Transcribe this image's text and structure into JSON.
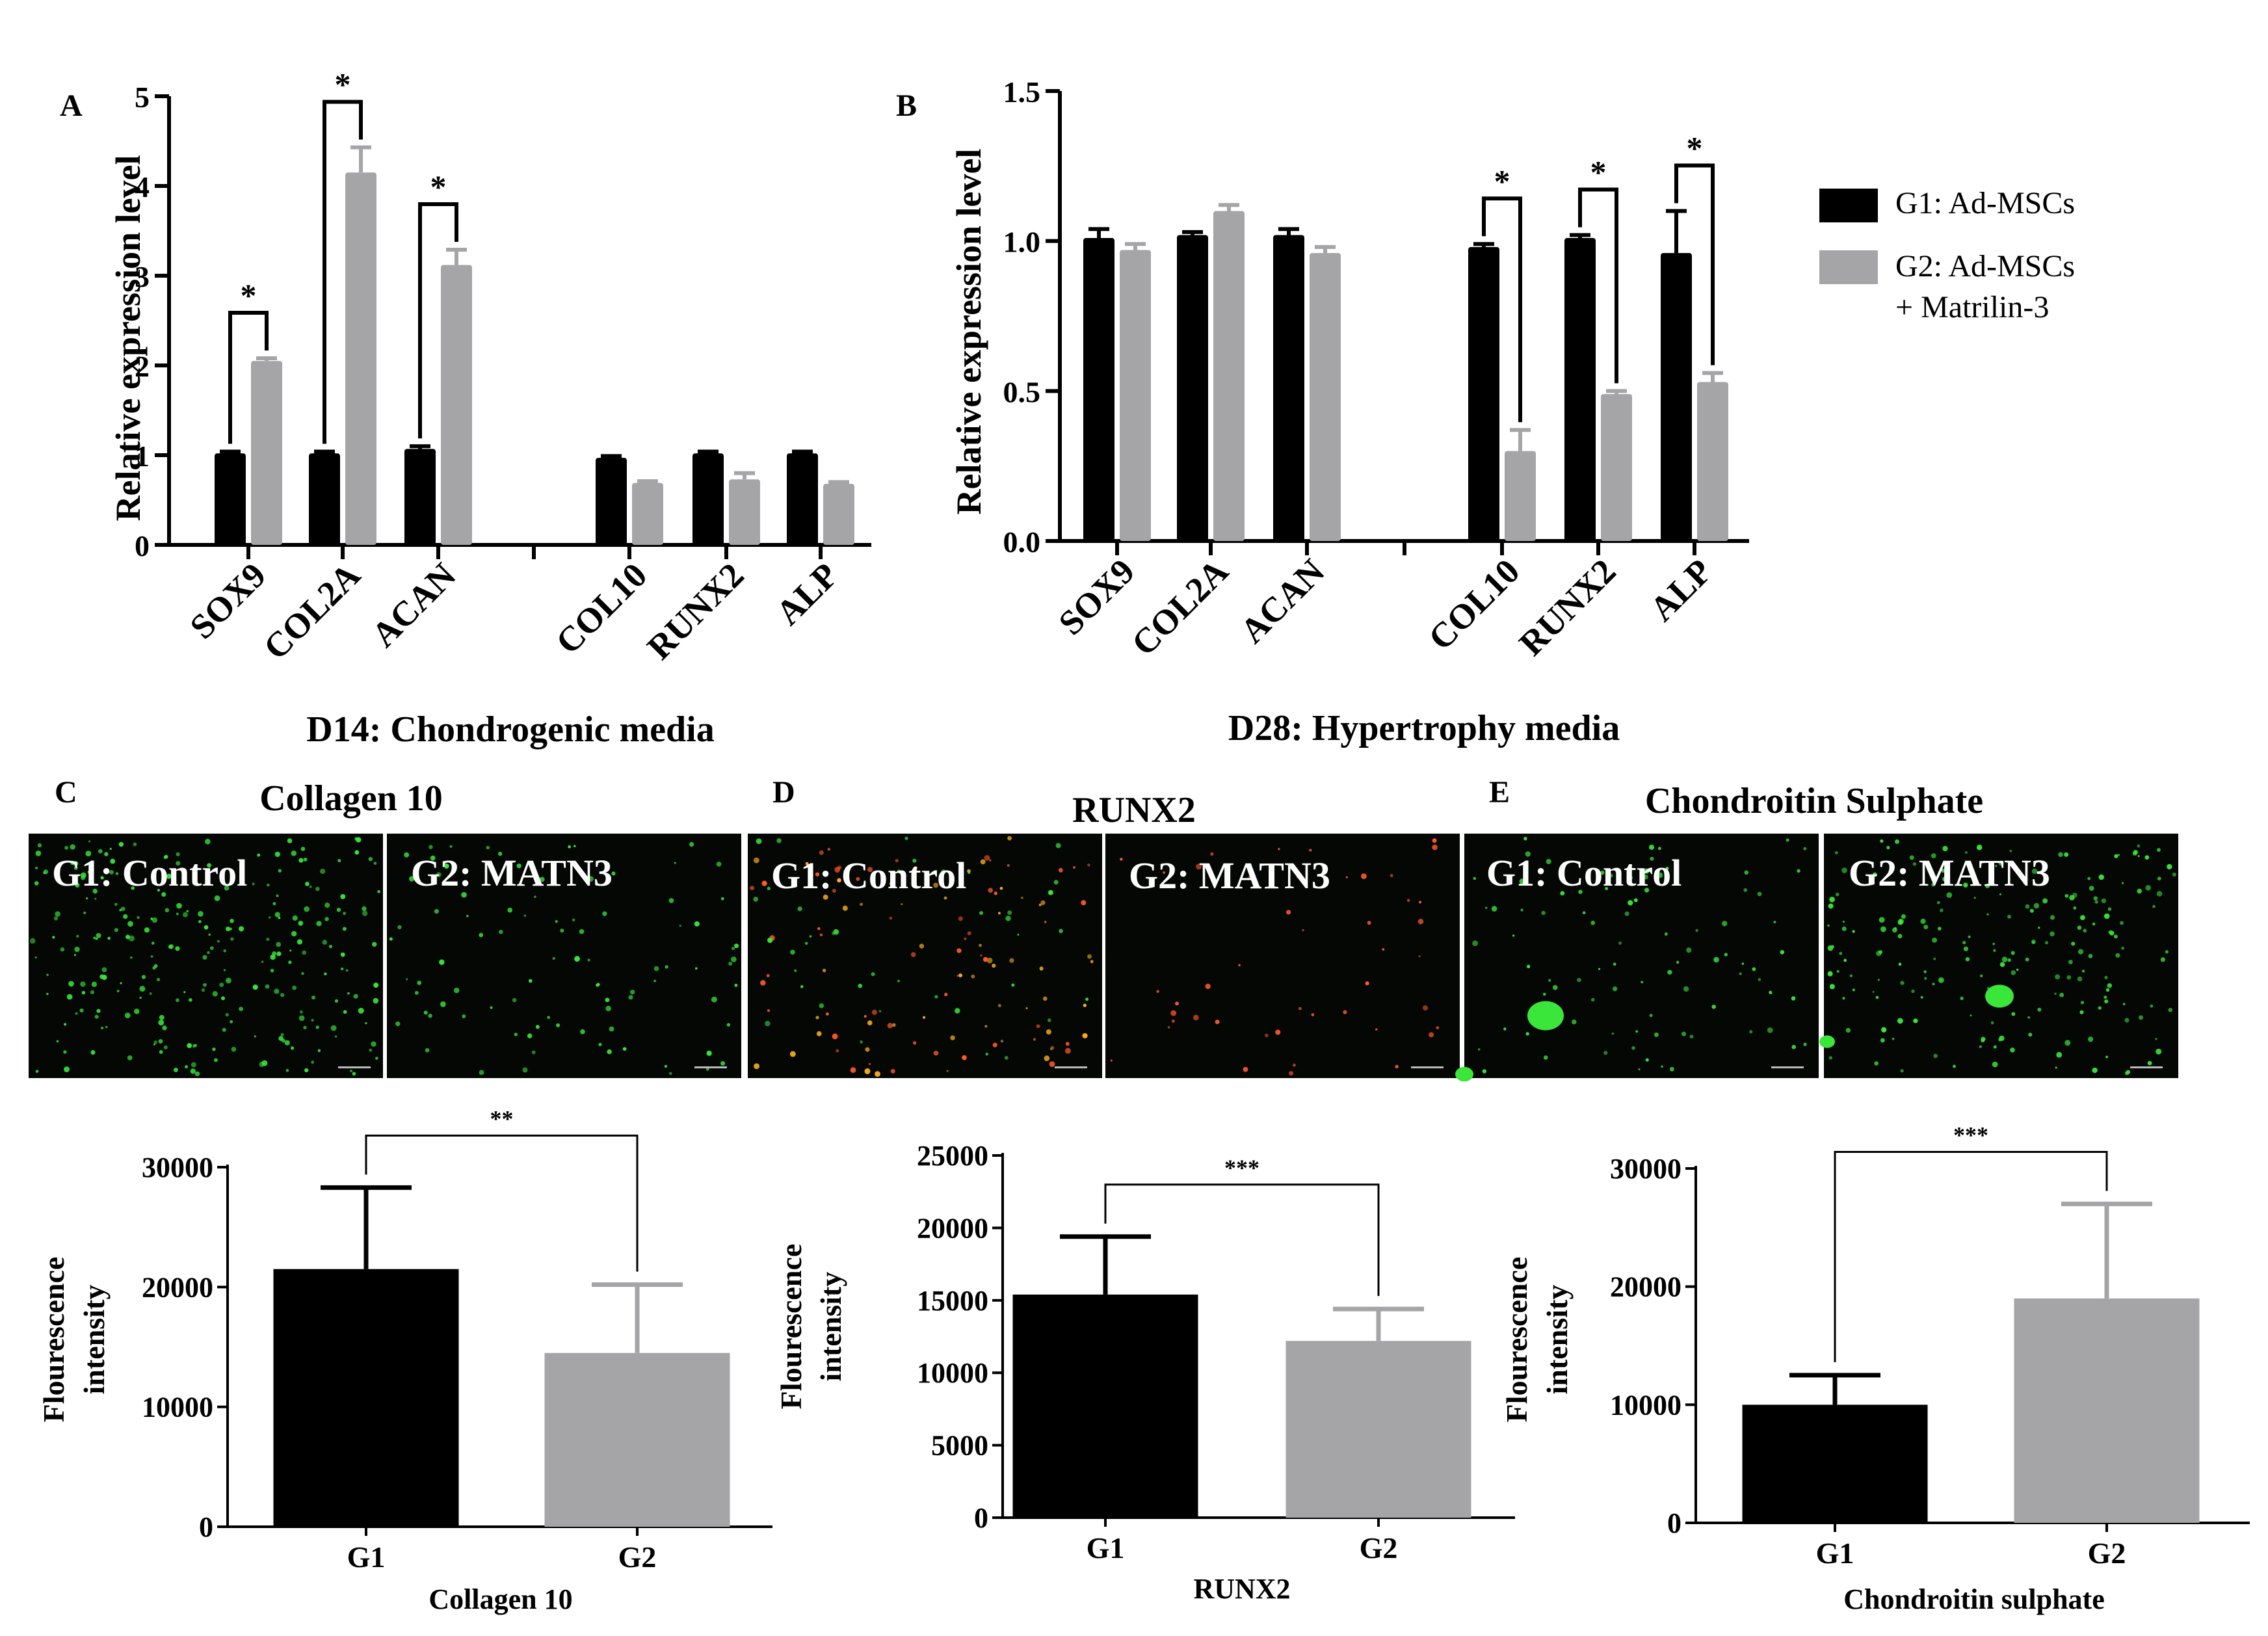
{
  "legend": {
    "placement": "right",
    "entries": [
      {
        "label": "G1: Ad-MSCs",
        "color": "#000000"
      },
      {
        "label": "G2: Ad-MSCs",
        "label2": "+ Matrilin-3",
        "color": "#a5a5a7"
      }
    ]
  },
  "colors": {
    "g1": "#000000",
    "g2": "#a5a5a7",
    "green_signal": "#39e639",
    "red_signal": "#ff5a28",
    "micrograph_bg": "#050705"
  },
  "micrographs": {
    "C": {
      "panel": "C",
      "title": "Collagen 10",
      "left_label": "G1: Control",
      "right_label": "G2: MATN3"
    },
    "D": {
      "panel": "D",
      "title": "RUNX2",
      "left_label": "G1: Control",
      "right_label": "G2: MATN3"
    },
    "E": {
      "panel": "E",
      "title": "Chondroitin Sulphate",
      "left_label": "G1: Control",
      "right_label": "G2: MATN3"
    }
  },
  "chart_data": [
    {
      "id": "A",
      "panel": "A",
      "type": "bar",
      "ylabel": "Relative expression level",
      "xlabel": "D14: Chondrogenic media",
      "ylim": [
        0,
        5
      ],
      "yticks": [
        "0",
        "1",
        "2",
        "3",
        "4",
        "5"
      ],
      "categories": [
        "SOX9",
        "COL2A",
        "ACAN",
        "COL10",
        "RUNX2",
        "ALP"
      ],
      "series": [
        {
          "key": "G1",
          "values": [
            1.02,
            1.02,
            1.07,
            0.97,
            1.02,
            1.02
          ],
          "err": [
            0.02,
            0.02,
            0.03,
            0.02,
            0.02,
            0.02
          ]
        },
        {
          "key": "G2",
          "values": [
            2.05,
            4.15,
            3.12,
            0.69,
            0.73,
            0.68
          ],
          "err": [
            0.03,
            0.28,
            0.17,
            0.02,
            0.07,
            0.02
          ]
        }
      ],
      "significance": [
        {
          "category": 0,
          "label": "*"
        },
        {
          "category": 1,
          "label": "*"
        },
        {
          "category": 2,
          "label": "*"
        }
      ]
    },
    {
      "id": "B",
      "panel": "B",
      "type": "bar",
      "ylabel": "Relative expression level",
      "xlabel": "D28: Hypertrophy media",
      "ylim": [
        0,
        1.5
      ],
      "yticks": [
        "0.0",
        "0.5",
        "1.0",
        "1.5"
      ],
      "categories": [
        "SOX9",
        "COL2A",
        "ACAN",
        "COL10",
        "RUNX2",
        "ALP"
      ],
      "series": [
        {
          "key": "G1",
          "values": [
            1.01,
            1.02,
            1.02,
            0.98,
            1.01,
            0.96
          ],
          "err": [
            0.03,
            0.01,
            0.02,
            0.01,
            0.01,
            0.14
          ]
        },
        {
          "key": "G2",
          "values": [
            0.97,
            1.1,
            0.96,
            0.3,
            0.49,
            0.53
          ],
          "err": [
            0.02,
            0.02,
            0.02,
            0.07,
            0.01,
            0.03
          ]
        }
      ],
      "significance": [
        {
          "category": 3,
          "label": "*"
        },
        {
          "category": 4,
          "label": "*"
        },
        {
          "category": 5,
          "label": "*"
        }
      ]
    },
    {
      "id": "C",
      "type": "bar",
      "ylabel_lines": [
        "Flourescence",
        "intensity"
      ],
      "xlabel": "Collagen 10",
      "ylim": [
        0,
        30000
      ],
      "yticks": [
        "0",
        "10000",
        "20000",
        "30000"
      ],
      "categories": [
        "G1",
        "G2"
      ],
      "values": [
        21500,
        14500
      ],
      "err": [
        6800,
        5700
      ],
      "significance": {
        "label": "**"
      }
    },
    {
      "id": "D",
      "type": "bar",
      "ylabel_lines": [
        "Flourescence",
        "intensity"
      ],
      "xlabel": "RUNX2",
      "ylim": [
        0,
        25000
      ],
      "yticks": [
        "0",
        "5000",
        "10000",
        "15000",
        "20000",
        "25000"
      ],
      "categories": [
        "G1",
        "G2"
      ],
      "values": [
        15400,
        12200
      ],
      "err": [
        4000,
        2200
      ],
      "significance": {
        "label": "***"
      }
    },
    {
      "id": "E",
      "type": "bar",
      "ylabel_lines": [
        "Flourescence",
        "intensity"
      ],
      "xlabel": "Chondroitin sulphate",
      "ylim": [
        0,
        30000
      ],
      "yticks": [
        "0",
        "10000",
        "20000",
        "30000"
      ],
      "categories": [
        "G1",
        "G2"
      ],
      "values": [
        10000,
        19000
      ],
      "err": [
        2500,
        8000
      ],
      "significance": {
        "label": "***"
      }
    }
  ]
}
